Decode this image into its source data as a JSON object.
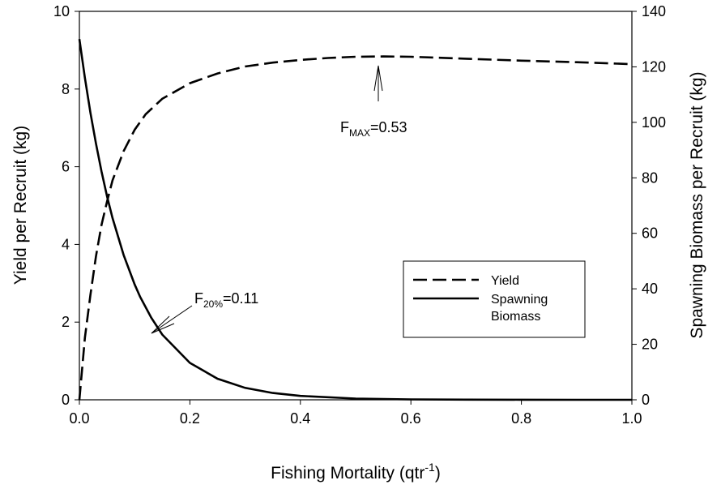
{
  "chart_data": {
    "type": "line",
    "xlabel": "Fishing Mortality (qtr",
    "xlabel_sup": "-1",
    "xlabel_end": ")",
    "ylabel_left": "Yield per Recruit (kg)",
    "ylabel_right": "Spawning Biomass per Recruit (kg)",
    "xlim": [
      0,
      1
    ],
    "ylim_left": [
      0,
      10
    ],
    "ylim_right": [
      0,
      140
    ],
    "x_ticks": [
      "0.0",
      "0.2",
      "0.4",
      "0.6",
      "0.8",
      "1.0"
    ],
    "y_left_ticks": [
      "0",
      "2",
      "4",
      "6",
      "8",
      "10"
    ],
    "y_right_ticks": [
      "0",
      "20",
      "40",
      "60",
      "80",
      "100",
      "120",
      "140"
    ],
    "grid": false,
    "legend_position": "right-center",
    "series": [
      {
        "name": "Yield",
        "axis": "left",
        "style": "dashed",
        "points": [
          [
            0,
            0
          ],
          [
            0.01,
            1.6
          ],
          [
            0.02,
            2.7
          ],
          [
            0.03,
            3.7
          ],
          [
            0.04,
            4.5
          ],
          [
            0.05,
            5.1
          ],
          [
            0.06,
            5.65
          ],
          [
            0.08,
            6.4
          ],
          [
            0.1,
            6.95
          ],
          [
            0.12,
            7.35
          ],
          [
            0.15,
            7.75
          ],
          [
            0.2,
            8.15
          ],
          [
            0.25,
            8.4
          ],
          [
            0.3,
            8.58
          ],
          [
            0.35,
            8.68
          ],
          [
            0.4,
            8.75
          ],
          [
            0.45,
            8.8
          ],
          [
            0.5,
            8.83
          ],
          [
            0.55,
            8.84
          ],
          [
            0.6,
            8.83
          ],
          [
            0.7,
            8.78
          ],
          [
            0.8,
            8.73
          ],
          [
            0.9,
            8.69
          ],
          [
            1.0,
            8.64
          ]
        ]
      },
      {
        "name": "Spawning Biomass",
        "legend_lines": [
          "Spawning",
          "Biomass"
        ],
        "axis": "right",
        "style": "solid",
        "points": [
          [
            0,
            130
          ],
          [
            0.01,
            116
          ],
          [
            0.02,
            103.5
          ],
          [
            0.03,
            92.3
          ],
          [
            0.04,
            82.3
          ],
          [
            0.05,
            73.4
          ],
          [
            0.06,
            65.5
          ],
          [
            0.08,
            52.2
          ],
          [
            0.1,
            41.6
          ],
          [
            0.11,
            37.1
          ],
          [
            0.13,
            29.6
          ],
          [
            0.15,
            23.5
          ],
          [
            0.2,
            13.3
          ],
          [
            0.25,
            7.6
          ],
          [
            0.3,
            4.3
          ],
          [
            0.35,
            2.45
          ],
          [
            0.4,
            1.4
          ],
          [
            0.5,
            0.45
          ],
          [
            0.6,
            0.15
          ],
          [
            0.7,
            0.05
          ],
          [
            0.8,
            0.02
          ],
          [
            0.9,
            0.01
          ],
          [
            1.0,
            0
          ]
        ]
      }
    ],
    "annotations": [
      {
        "main": "F",
        "sub": "MAX",
        "tail": "=0.53",
        "target": [
          0.55,
          8.84
        ]
      },
      {
        "main": "F",
        "sub": "20%",
        "tail": "=0.11",
        "target_right": [
          0.13,
          24.2
        ]
      }
    ]
  }
}
